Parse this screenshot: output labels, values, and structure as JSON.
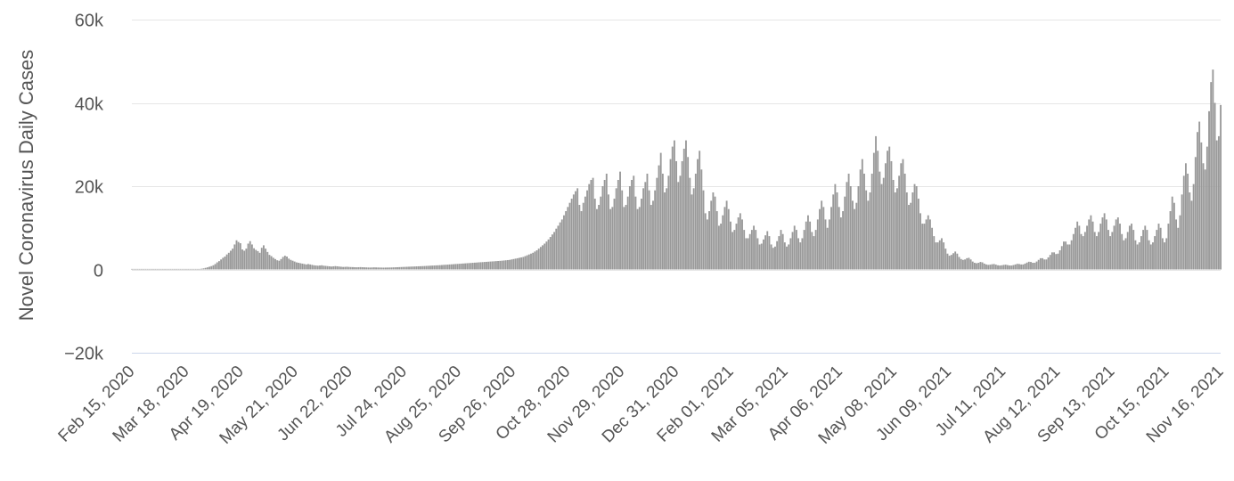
{
  "chart_data": {
    "type": "bar",
    "title": "",
    "xlabel": "",
    "ylabel": "Novel Coronavirus Daily Cases",
    "ylim": [
      -20000,
      60000
    ],
    "yticks": [
      60000,
      40000,
      20000,
      0,
      -20000
    ],
    "ytick_labels": [
      "60k",
      "40k",
      "20k",
      "0",
      "−20k"
    ],
    "x_start": "2020-02-15",
    "x_end": "2021-11-16",
    "xtick_labels": [
      "Feb 15, 2020",
      "Mar 18, 2020",
      "Apr 19, 2020",
      "May 21, 2020",
      "Jun 22, 2020",
      "Jul 24, 2020",
      "Aug 25, 2020",
      "Sep 26, 2020",
      "Oct 28, 2020",
      "Nov 29, 2020",
      "Dec 31, 2020",
      "Feb 01, 2021",
      "Mar 05, 2021",
      "Apr 06, 2021",
      "May 08, 2021",
      "Jun 09, 2021",
      "Jul 11, 2021",
      "Aug 12, 2021",
      "Sep 13, 2021",
      "Oct 15, 2021",
      "Nov 16, 2021"
    ],
    "grid": true,
    "legend": "none",
    "color": "#999999",
    "series": [
      {
        "values": [
          0,
          0,
          0,
          0,
          0,
          0,
          0,
          0,
          0,
          0,
          0,
          0,
          0,
          0,
          0,
          0,
          0,
          0,
          0,
          0,
          0,
          0,
          0,
          0,
          0,
          0,
          0,
          0,
          0,
          0,
          0,
          10,
          20,
          40,
          80,
          120,
          180,
          260,
          380,
          500,
          650,
          800,
          1000,
          1300,
          1700,
          2000,
          2400,
          2800,
          3100,
          3600,
          4000,
          4500,
          5000,
          6000,
          7000,
          6600,
          6300,
          4800,
          4500,
          5000,
          6200,
          6800,
          6000,
          5100,
          4700,
          4400,
          4000,
          5200,
          5800,
          5000,
          4200,
          3500,
          3200,
          2800,
          2500,
          2200,
          2100,
          2500,
          3000,
          3300,
          3100,
          2600,
          2300,
          2100,
          1900,
          1700,
          1600,
          1500,
          1400,
          1300,
          1200,
          1300,
          1200,
          1100,
          1000,
          950,
          900,
          950,
          1000,
          900,
          850,
          800,
          750,
          700,
          750,
          800,
          750,
          700,
          650,
          600,
          620,
          650,
          600,
          580,
          560,
          540,
          520,
          540,
          560,
          530,
          510,
          490,
          470,
          460,
          480,
          500,
          490,
          470,
          460,
          450,
          440,
          450,
          460,
          470,
          480,
          500,
          520,
          540,
          560,
          580,
          600,
          620,
          640,
          660,
          680,
          700,
          720,
          740,
          760,
          780,
          800,
          820,
          850,
          880,
          900,
          930,
          950,
          980,
          1000,
          1030,
          1060,
          1100,
          1130,
          1160,
          1200,
          1230,
          1260,
          1300,
          1330,
          1360,
          1400,
          1430,
          1460,
          1500,
          1530,
          1560,
          1600,
          1630,
          1660,
          1700,
          1730,
          1760,
          1800,
          1830,
          1860,
          1900,
          1930,
          1960,
          2000,
          2030,
          2060,
          2100,
          2150,
          2200,
          2250,
          2300,
          2400,
          2500,
          2600,
          2700,
          2800,
          2900,
          3000,
          3200,
          3400,
          3600,
          3800,
          4000,
          4300,
          4600,
          5000,
          5400,
          5800,
          6200,
          6700,
          7200,
          7800,
          8400,
          9000,
          9800,
          10500,
          11300,
          12000,
          13000,
          14000,
          15000,
          16000,
          17000,
          18000,
          18800,
          19500,
          15500,
          14000,
          16000,
          17500,
          19000,
          20500,
          21500,
          22000,
          17000,
          14500,
          15500,
          17500,
          20000,
          21500,
          23000,
          18000,
          14500,
          15000,
          17000,
          19500,
          21500,
          23500,
          19000,
          15000,
          15500,
          17500,
          20000,
          21500,
          22500,
          17500,
          14500,
          15000,
          17000,
          19500,
          21000,
          23000,
          19000,
          15500,
          16500,
          19000,
          22000,
          25000,
          28000,
          23000,
          18500,
          19500,
          22500,
          26500,
          29500,
          31000,
          26000,
          21000,
          22500,
          26000,
          29000,
          31000,
          27000,
          22000,
          18000,
          19500,
          23000,
          26500,
          28500,
          24000,
          19000,
          13500,
          12000,
          14000,
          16500,
          18500,
          17500,
          14000,
          10500,
          11000,
          13000,
          15000,
          16500,
          14500,
          11500,
          9000,
          9500,
          11000,
          12500,
          13500,
          12000,
          9500,
          7500,
          7500,
          8500,
          9500,
          10500,
          9500,
          7500,
          6000,
          6200,
          7200,
          8200,
          9200,
          8000,
          6000,
          5200,
          5500,
          6800,
          8000,
          9500,
          8500,
          6500,
          5500,
          6000,
          7500,
          9000,
          10500,
          9500,
          7500,
          6500,
          7500,
          9500,
          11500,
          13000,
          11500,
          9000,
          8000,
          9500,
          12000,
          14500,
          16500,
          15000,
          12000,
          10000,
          12000,
          15000,
          18000,
          20500,
          18500,
          15000,
          12500,
          14000,
          17500,
          21000,
          23000,
          20000,
          16500,
          14500,
          16000,
          20000,
          24000,
          26500,
          23000,
          19000,
          16500,
          18500,
          23000,
          28000,
          32000,
          28500,
          23500,
          20500,
          22000,
          25500,
          28500,
          29500,
          26000,
          21500,
          18500,
          19500,
          22500,
          25500,
          26500,
          23000,
          18500,
          15500,
          16000,
          18500,
          20500,
          20000,
          17000,
          13500,
          11000,
          11000,
          12000,
          13000,
          12000,
          10000,
          8000,
          6500,
          6500,
          7000,
          7500,
          6500,
          5000,
          3800,
          3300,
          3500,
          3900,
          4300,
          3800,
          3000,
          2500,
          2300,
          2400,
          2700,
          2800,
          2400,
          1900,
          1600,
          1500,
          1600,
          1800,
          1700,
          1400,
          1200,
          1100,
          1150,
          1250,
          1300,
          1150,
          1000,
          950,
          1000,
          1100,
          1150,
          1050,
          950,
          950,
          1050,
          1200,
          1350,
          1300,
          1200,
          1200,
          1400,
          1650,
          1850,
          1800,
          1600,
          1600,
          1900,
          2300,
          2700,
          2700,
          2400,
          2400,
          2900,
          3500,
          4100,
          4100,
          3700,
          3800,
          4600,
          5600,
          6700,
          6700,
          6000,
          6000,
          7000,
          8500,
          10000,
          11500,
          10500,
          8500,
          8000,
          9000,
          10500,
          12000,
          13000,
          11500,
          9000,
          8000,
          9000,
          11000,
          12500,
          13500,
          12000,
          9500,
          8000,
          9000,
          10500,
          12000,
          12500,
          11000,
          8500,
          7000,
          7500,
          9000,
          10500,
          11000,
          9500,
          7000,
          6000,
          6500,
          8000,
          9500,
          10500,
          9500,
          7000,
          6000,
          6500,
          8000,
          9500,
          11000,
          10000,
          7500,
          6500,
          7500,
          11000,
          14000,
          17500,
          16000,
          12000,
          10000,
          13000,
          18000,
          22500,
          25500,
          23000,
          18500,
          16500,
          20500,
          27000,
          33000,
          35500,
          30500,
          25500,
          24000,
          29500,
          38000,
          45000,
          48000,
          40000,
          31000,
          32000,
          39500
        ]
      }
    ]
  }
}
